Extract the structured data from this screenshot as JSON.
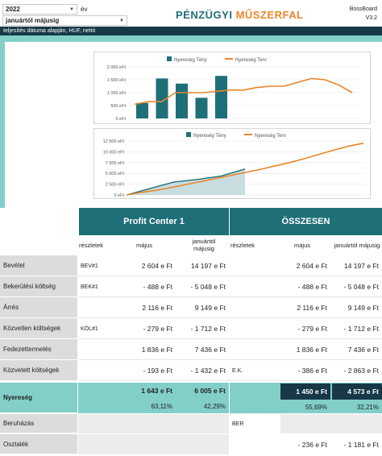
{
  "header": {
    "year": "2022",
    "year_suffix": "év",
    "period": "januártól májusig",
    "title_part1": "PÉNZÜGYI ",
    "title_part2": "MŰSZERFAL",
    "brand": "BossBoard",
    "version": "V3.2",
    "subtitle": "teljesítés dátuma alapján, HUF, nettó"
  },
  "colors": {
    "teal": "#1f6f78",
    "orange": "#e8862a",
    "band": "#82cfc8",
    "dark": "#163847"
  },
  "chart_monthly": {
    "type": "bar",
    "legend": [
      "Nyereség Tény",
      "Nyereség Terv"
    ],
    "ytick_labels": [
      "2 000 eFt",
      "1 500 eFt",
      "1 000 eFt",
      "500 eFt",
      "0 eFt"
    ],
    "ylim": [
      0,
      2000
    ],
    "bars": [
      600,
      1550,
      1350,
      800,
      1650
    ],
    "plan": [
      550,
      650,
      650,
      1000,
      1000,
      1000,
      1050,
      1100,
      1100,
      1200,
      1250,
      1250,
      1400,
      1550,
      1500,
      1300,
      1000
    ]
  },
  "chart_cumulative": {
    "type": "area",
    "legend": [
      "Nyereség Tény",
      "Nyereség Terv"
    ],
    "ytick_labels": [
      "12 500 eFt",
      "10 000 eFt",
      "7 500 eFt",
      "5 000 eFt",
      "2 500 eFt",
      "0 eFt"
    ],
    "ylim": [
      0,
      12500
    ],
    "fact": [
      0,
      1500,
      3000,
      3600,
      4400,
      6000
    ],
    "plan": [
      0,
      600,
      1100,
      1700,
      2400,
      3100,
      3800,
      4500,
      5200,
      5900,
      6700,
      7500,
      8400,
      9400,
      10400,
      11300,
      12000
    ]
  },
  "table": {
    "pc_title": "Profit Center 1",
    "total_title": "ÖSSZESEN",
    "col_detail": "részletek",
    "col_may": "május",
    "col_ytd": "januártól májusig",
    "rows": [
      {
        "label": "Bevétel",
        "pc_code": "BEV#1",
        "pc_may": "2 604  e Ft",
        "pc_ytd": "14 197  e Ft",
        "t_code": "",
        "t_may": "2 604  e Ft",
        "t_ytd": "14 197  e Ft"
      },
      {
        "label": "Bekerülési költség",
        "pc_code": "BEK#1",
        "pc_may": "-  488  e Ft",
        "pc_ytd": "- 5 048  e Ft",
        "t_code": "",
        "t_may": "-  488  e Ft",
        "t_ytd": "- 5 048  e Ft"
      },
      {
        "label": "Árrés",
        "pc_code": "",
        "pc_may": "2 116  e Ft",
        "pc_ytd": "9 149  e Ft",
        "t_code": "",
        "t_may": "2 116  e Ft",
        "t_ytd": "9 149  e Ft"
      },
      {
        "label": "Közvetlen költségek",
        "pc_code": "KÖL#1",
        "pc_may": "-  279  e Ft",
        "pc_ytd": "- 1 712  e Ft",
        "t_code": "",
        "t_may": "-  279  e Ft",
        "t_ytd": "- 1 712  e Ft"
      },
      {
        "label": "Fedezettermelés",
        "pc_code": "",
        "pc_may": "1 836  e Ft",
        "pc_ytd": "7 436  e Ft",
        "t_code": "",
        "t_may": "1 836  e Ft",
        "t_ytd": "7 436  e Ft"
      },
      {
        "label": "Közvetett költségek",
        "pc_code": "",
        "pc_may": "-  193  e Ft",
        "pc_ytd": "- 1 432  e Ft",
        "t_code": "E.K.",
        "t_may": "-  386  e Ft",
        "t_ytd": "- 2 863  e Ft"
      }
    ],
    "profit": {
      "label": "Nyereség",
      "pc_may": "1 643  e Ft",
      "pc_ytd": "6 005  e Ft",
      "pc_may_pct": "63,11%",
      "pc_ytd_pct": "42,29%",
      "t_may": "1 450  e Ft",
      "t_ytd": "4 573  e Ft",
      "t_may_pct": "55,69%",
      "t_ytd_pct": "32,21%"
    },
    "invest": {
      "label": "Beruházás",
      "t_code": "BER"
    },
    "dividend": {
      "label": "Osztalék",
      "t_may": "-  236  e Ft",
      "t_ytd": "- 1 181  e Ft"
    }
  }
}
